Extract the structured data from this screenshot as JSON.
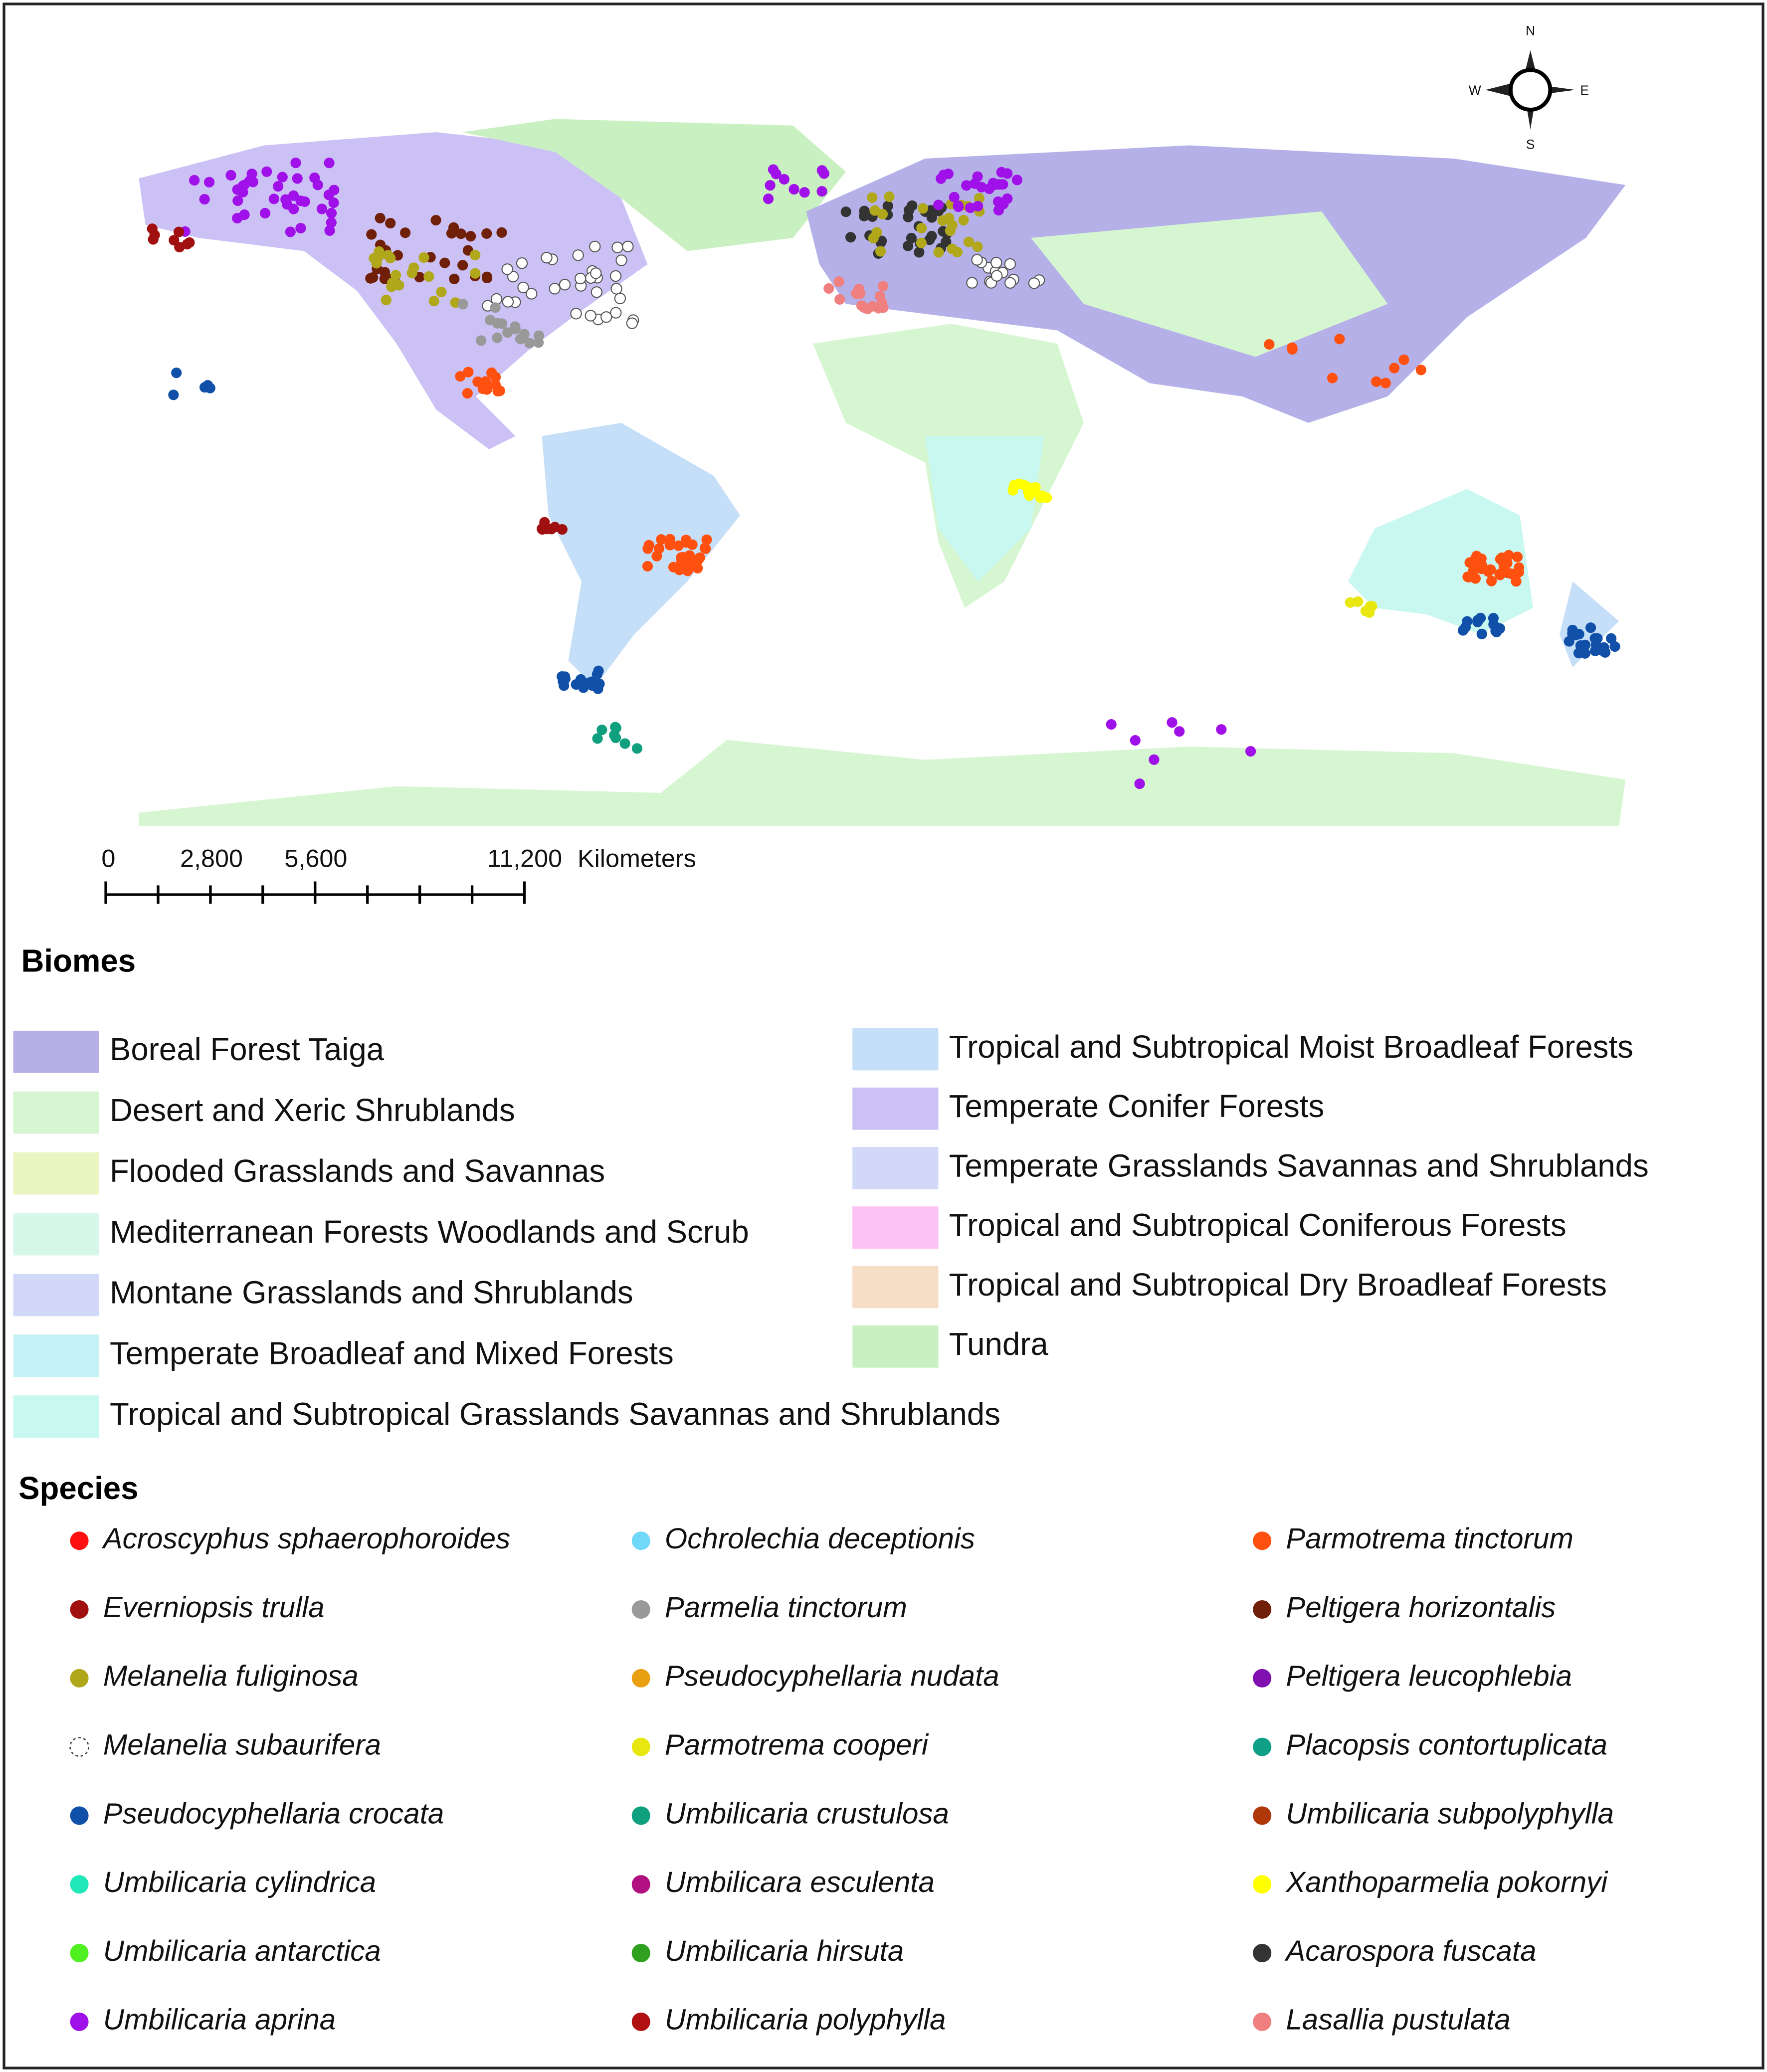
{
  "map": {
    "compass": [
      "N",
      "E",
      "S",
      "W"
    ],
    "scale_bar": {
      "labels": [
        "0",
        "2,800",
        "5,600",
        "11,200"
      ],
      "unit": "Kilometers"
    }
  },
  "legend": {
    "biomes": {
      "title": "Biomes",
      "items": [
        {
          "name": "Boreal Forest Taiga",
          "color": "#b5b1e8"
        },
        {
          "name": "Desert and Xeric Shrublands",
          "color": "#d6f6d1"
        },
        {
          "name": "Flooded Grasslands and Savannas",
          "color": "#e9f6c2"
        },
        {
          "name": "Mediterranean Forests Woodlands and Scrub",
          "color": "#d6f8e9"
        },
        {
          "name": "Montane Grasslands and Shrublands",
          "color": "#d2d9f8"
        },
        {
          "name": "Temperate Broadleaf and Mixed Forests",
          "color": "#c6f1f6"
        },
        {
          "name": "Tropical and Subtropical Grasslands Savannas and Shrublands",
          "color": "#c9f8f1"
        },
        {
          "name": "Tropical and Subtropical Moist Broadleaf Forests",
          "color": "#c6dff8"
        },
        {
          "name": "Temperate Conifer Forests",
          "color": "#ccc1f5"
        },
        {
          "name": "Temperate Grasslands Savannas and Shrublands",
          "color": "#d2d9f8"
        },
        {
          "name": "Tropical and Subtropical Coniferous Forests",
          "color": "#fcc2f6"
        },
        {
          "name": "Tropical and Subtropical Dry Broadleaf Forests",
          "color": "#f6ddc6"
        },
        {
          "name": "Tundra",
          "color": "#c9f0c1"
        }
      ]
    },
    "species": {
      "title": "Species",
      "items": [
        {
          "name": "Acroscyphus sphaerophoroides",
          "color": "#ff1010"
        },
        {
          "name": "Everniopsis trulla",
          "color": "#a01010"
        },
        {
          "name": "Melanelia fuliginosa",
          "color": "#b0a81a"
        },
        {
          "name": "Melanelia subaurifera",
          "color": "#ffffff"
        },
        {
          "name": "Pseudocyphellaria crocata",
          "color": "#1050a8"
        },
        {
          "name": "Umbilicaria cylindrica",
          "color": "#20e8b8"
        },
        {
          "name": "Umbilicaria antarctica",
          "color": "#50f020"
        },
        {
          "name": "Umbilicaria aprina",
          "color": "#a010e8"
        },
        {
          "name": "Ochrolechia deceptionis",
          "color": "#70d8f8"
        },
        {
          "name": "Parmelia tinctorum",
          "color": "#999999"
        },
        {
          "name": "Pseudocyphellaria nudata",
          "color": "#e8a010"
        },
        {
          "name": "Parmotrema cooperi",
          "color": "#e8e810"
        },
        {
          "name": "Umbilicaria crustulosa",
          "color": "#10a080"
        },
        {
          "name": "Umbilicara esculenta",
          "color": "#b01080"
        },
        {
          "name": "Umbilicaria hirsuta",
          "color": "#30a020"
        },
        {
          "name": "Umbilicaria polyphylla",
          "color": "#b01010"
        },
        {
          "name": "Parmotrema tinctorum",
          "color": "#ff5010"
        },
        {
          "name": "Peltigera horizontalis",
          "color": "#702008"
        },
        {
          "name": "Peltigera leucophlebia",
          "color": "#8010b0"
        },
        {
          "name": "Placopsis contortuplicata",
          "color": "#10a088"
        },
        {
          "name": "Umbilicaria subpolyphylla",
          "color": "#b03808"
        },
        {
          "name": "Xanthoparmelia pokornyi",
          "color": "#ffff00"
        },
        {
          "name": "Acarospora fuscata",
          "color": "#333333"
        },
        {
          "name": "Lasallia pustulata",
          "color": "#f08080"
        }
      ]
    }
  }
}
